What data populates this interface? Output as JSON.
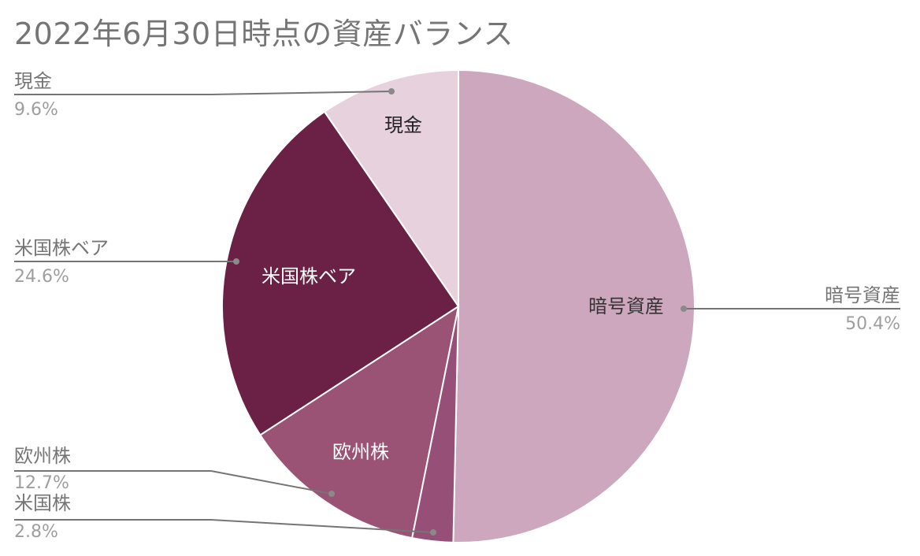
{
  "chart_data": {
    "type": "pie",
    "title": "2022年6月30日時点の資産バランス",
    "slices": [
      {
        "label": "暗号資産",
        "value": 50.4,
        "percent_label": "50.4%",
        "color": "#cda7bd",
        "inside_label": "暗号資産",
        "inside_text_color": "#333333"
      },
      {
        "label": "米国株",
        "value": 2.8,
        "percent_label": "2.8%",
        "color": "#964f76",
        "inside_label": "",
        "inside_text_color": "#ffffff"
      },
      {
        "label": "欧州株",
        "value": 12.7,
        "percent_label": "12.7%",
        "color": "#9a5275",
        "inside_label": "欧州株",
        "inside_text_color": "#ffffff"
      },
      {
        "label": "米国株ベア",
        "value": 24.6,
        "percent_label": "24.6%",
        "color": "#6a2145",
        "inside_label": "米国株ベア",
        "inside_text_color": "#ffffff"
      },
      {
        "label": "現金",
        "value": 9.6,
        "percent_label": "9.6%",
        "color": "#e6d1dc",
        "inside_label": "現金",
        "inside_text_color": "#222222"
      }
    ],
    "start_angle_deg": 0,
    "direction": "clockwise",
    "legend": "callouts"
  }
}
